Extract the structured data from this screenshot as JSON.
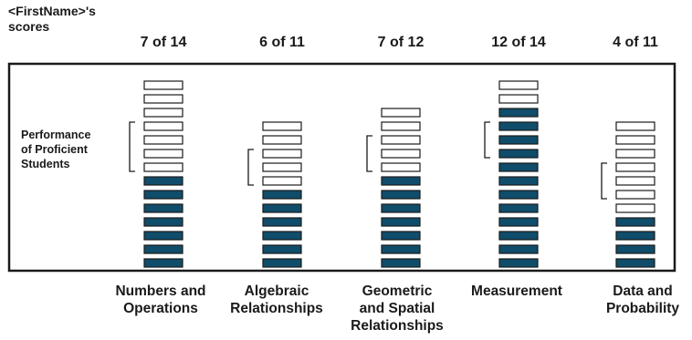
{
  "header": {
    "name": "<FirstName>'s",
    "scores_label": "scores"
  },
  "proficient_label": "Performance\nof Proficient\nStudents",
  "colors": {
    "filled": "#0f4d6b",
    "empty": "#ffffff",
    "stroke": "#1a1a1a",
    "frame": "#1a1a1a"
  },
  "chart_data": {
    "type": "bar",
    "title": "",
    "categories": [
      "Numbers and\nOperations",
      "Algebraic\nRelationships",
      "Geometric\nand Spatial\nRelationships",
      "Measurement",
      "Data and\nProbability"
    ],
    "scores_text": [
      "7 of 14",
      "6 of 11",
      "7 of 12",
      "12 of 14",
      "4 of 11"
    ],
    "series": [
      {
        "name": "Score",
        "values": [
          7,
          6,
          7,
          12,
          4
        ]
      }
    ],
    "totals": [
      14,
      11,
      12,
      14,
      11
    ],
    "proficient_range": [
      [
        8,
        11
      ],
      [
        7,
        9
      ],
      [
        8,
        10
      ],
      [
        9,
        11
      ],
      [
        6,
        8
      ]
    ]
  }
}
